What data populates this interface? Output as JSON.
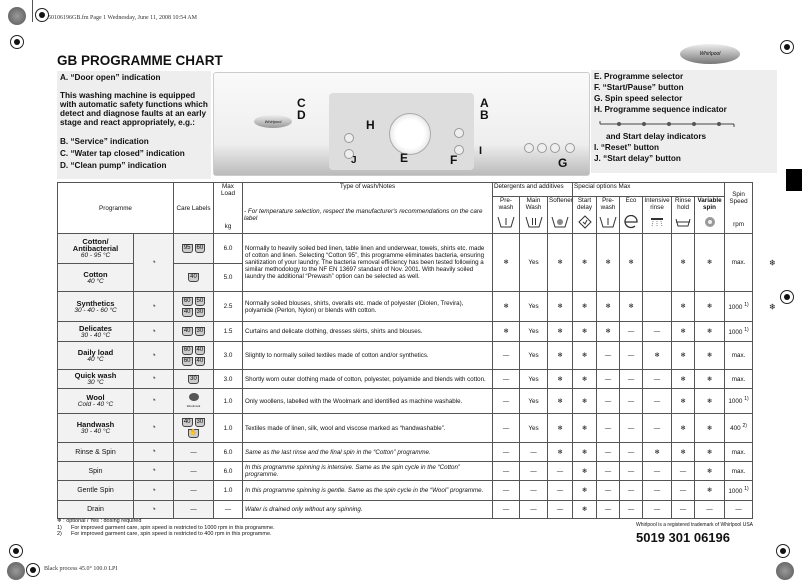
{
  "print_header": "50106196GB.fm  Page 1  Wednesday, June 11, 2008  10:54 AM",
  "print_footer": "Black process 45.0° 100.0 LPI",
  "title": "GB PROGRAMME CHART",
  "left_panel": {
    "a": "A.  “Door open” indication",
    "intro": "This washing machine is equipped with automatic safety functions which detect and diagnose faults at an early stage and react appropriately, e.g.:",
    "b": "B.  “Service” indication",
    "c": "C.  “Water tap closed” indication",
    "d": "D.  “Clean pump” indication"
  },
  "right_panel": {
    "e": "E. Programme selector",
    "f": "F.  “Start/Pause” button",
    "g": "G. Spin speed selector",
    "h": "H. Programme sequence indicator",
    "h2": "and Start delay indicators",
    "i": "I.   “Reset” button",
    "j": "J.   “Start delay” button"
  },
  "panel_callouts": [
    "A",
    "B",
    "C",
    "D",
    "E",
    "F",
    "G",
    "H",
    "I",
    "J"
  ],
  "brand_logo": "Whirlpool",
  "table": {
    "headers": {
      "programme": "Programme",
      "care": "Care Labels",
      "max_load": "Max Load",
      "kg": "kg",
      "notes": "Type of wash/Notes",
      "notes_sub": "- For temperature selection, respect the manufacturer's recommendations on the care label",
      "detergents": "Detergents and additives",
      "special": "Special options Max",
      "spin": "Spin Speed",
      "rpm": "rpm",
      "options": [
        {
          "label": "Pre-wash",
          "icon": "prewash-tub-icon"
        },
        {
          "label": "Main Wash",
          "icon": "mainwash-tub-icon"
        },
        {
          "label": "Softener",
          "icon": "softener-icon"
        },
        {
          "label": "Start delay",
          "icon": "start-delay-icon"
        },
        {
          "label": "Pre-wash",
          "icon": "prewash-tub-icon"
        },
        {
          "label": "Eco",
          "icon": "eco-icon"
        },
        {
          "label": "Intensive rinse",
          "icon": "intensive-rinse-icon"
        },
        {
          "label": "Rinse hold",
          "icon": "rinse-hold-icon"
        },
        {
          "label": "Variable spin",
          "icon": "variable-spin-icon"
        }
      ]
    },
    "rows": [
      {
        "name": "Cotton/ Antibacterial",
        "temp": "60 - 95 °C",
        "bold": true,
        "icon": "cotton-icon",
        "care": [
          "95",
          "60"
        ],
        "load": "6.0",
        "notes": "Normally to heavily soiled bed linen, table linen and underwear, towels, shirts etc. made of cotton and linen. Selecting “Cotton 95”, this programme eliminates bacteria, ensuring sanitization of your laundry. The bacteria removal efficiency has been tested following a similar methodology to the NF EN 13697 standard of Nov. 2001. With heavily soiled laundry the additional “Prewash” option can be selected as well.",
        "options": [
          "❄",
          "Yes",
          "❄",
          "❄",
          "❄",
          "❄",
          "",
          "❄",
          "❄"
        ],
        "spin": "max.",
        "extra": "❄"
      },
      {
        "name": "Cotton",
        "temp": "40 °C",
        "bold": true,
        "care": [
          "40"
        ],
        "load": "5.0",
        "merged": true
      },
      {
        "name": "Synthetics",
        "temp": "30 - 40 - 60 °C",
        "bold": true,
        "icon": "synthetics-icon",
        "care": [
          "60",
          "50",
          "40",
          "30"
        ],
        "load": "2.5",
        "notes": "Normally soiled blouses, shirts, overalls etc. made of polyester (Diolen, Trevira), polyamide (Perlon, Nylon) or blends with cotton.",
        "options": [
          "❄",
          "Yes",
          "❄",
          "❄",
          "❄",
          "❄",
          "",
          "❄",
          "❄"
        ],
        "spin": "1000",
        "spin_note": "1)",
        "extra": "❄"
      },
      {
        "name": "Delicates",
        "temp": "30 - 40 °C",
        "bold": true,
        "icon": "delicates-icon",
        "care": [
          "40",
          "30"
        ],
        "load": "1.5",
        "notes": "Curtains and delicate clothing, dresses skirts, shirts and blouses.",
        "options": [
          "❄",
          "Yes",
          "❄",
          "❄",
          "❄",
          "—",
          "—",
          "❄",
          "❄"
        ],
        "spin": "1000",
        "spin_note": "1)"
      },
      {
        "name": "Daily load",
        "temp": "40 °C",
        "bold": true,
        "icon": "daily-load-icon",
        "care": [
          "60",
          "40",
          "60",
          "40"
        ],
        "load": "3.0",
        "notes": "Slightly to normally soiled textiles made of cotton and/or synthetics.",
        "options": [
          "—",
          "Yes",
          "❄",
          "❄",
          "—",
          "—",
          "❄",
          "❄",
          "❄"
        ],
        "spin": "max."
      },
      {
        "name": "Quick wash",
        "temp": "30 °C",
        "bold": true,
        "icon": "quick-wash-icon",
        "care": [
          "30"
        ],
        "load": "3.0",
        "notes": "Shortly worn outer clothing made of cotton, polyester, polyamide and blends with cotton.",
        "options": [
          "—",
          "Yes",
          "❄",
          "❄",
          "—",
          "—",
          "—",
          "❄",
          "❄"
        ],
        "spin": "max."
      },
      {
        "name": "Wool",
        "temp": "Cold - 40 °C",
        "bold": true,
        "icon": "wool-icon",
        "care": [
          "Woolmark"
        ],
        "load": "1.0",
        "notes": "Only woollens, labelled with the Woolmark and identified as machine washable.",
        "options": [
          "—",
          "Yes",
          "❄",
          "❄",
          "—",
          "—",
          "—",
          "❄",
          "❄"
        ],
        "spin": "1000",
        "spin_note": "1)"
      },
      {
        "name": "Handwash",
        "temp": "30 - 40 °C",
        "bold": true,
        "icon": "handwash-icon",
        "care": [
          "40",
          "30",
          "hand"
        ],
        "load": "1.0",
        "notes": "Textiles made of linen, silk, wool and viscose marked as “handwashable”.",
        "options": [
          "—",
          "Yes",
          "❄",
          "❄",
          "—",
          "—",
          "—",
          "❄",
          "❄"
        ],
        "spin": "400",
        "spin_note": "2)"
      },
      {
        "name": "Rinse & Spin",
        "temp": "",
        "bold": false,
        "icon": "rinse-spin-icon",
        "care": [
          "—"
        ],
        "load": "6.0",
        "italic": true,
        "notes": "Same as the last rinse and the final spin in the “Cotton” programme.",
        "options": [
          "—",
          "—",
          "❄",
          "❄",
          "—",
          "—",
          "❄",
          "❄",
          "❄"
        ],
        "spin": "max."
      },
      {
        "name": "Spin",
        "temp": "",
        "bold": false,
        "icon": "spin-icon",
        "care": [
          "—"
        ],
        "load": "6.0",
        "italic": true,
        "notes": "In this programme spinning is intensive. Same as the spin cycle in the “Cotton” programme.",
        "options": [
          "—",
          "—",
          "—",
          "❄",
          "—",
          "—",
          "—",
          "—",
          "❄"
        ],
        "spin": "max."
      },
      {
        "name": "Gentle Spin",
        "temp": "",
        "bold": false,
        "icon": "gentle-spin-icon",
        "care": [
          "—"
        ],
        "load": "1.0",
        "italic": true,
        "notes": "In this programme spinning is gentle. Same as the spin cycle in the “Wool” programme.",
        "options": [
          "—",
          "—",
          "—",
          "❄",
          "—",
          "—",
          "—",
          "—",
          "❄"
        ],
        "spin": "1000",
        "spin_note": "1)"
      },
      {
        "name": "Drain",
        "temp": "",
        "bold": false,
        "icon": "drain-icon",
        "care": [
          "—"
        ],
        "load": "—",
        "italic": true,
        "notes": "Water is drained only without any spinning.",
        "options": [
          "—",
          "—",
          "—",
          "❄",
          "—",
          "—",
          "—",
          "—",
          "—"
        ],
        "spin": "—"
      }
    ]
  },
  "footnotes": {
    "legend": "❄ : optional / Yes : dosing required",
    "n1_mark": "1)",
    "n1": "For improved garment care, spin speed is restricted to 1000 rpm in this programme.",
    "n2_mark": "2)",
    "n2": "For improved garment care, spin speed is restricted to 400 rpm in this programme."
  },
  "trademark": "Whirlpool is a registered trademark of Whirlpool USA",
  "part_number": "5019 301 06196"
}
